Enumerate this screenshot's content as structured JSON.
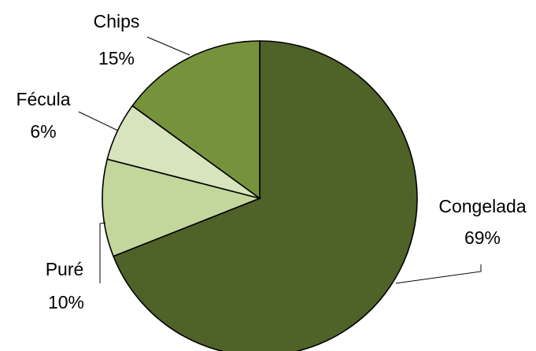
{
  "chart_data": {
    "type": "pie",
    "title": "",
    "slices": [
      {
        "label": "Congelada",
        "value": 69,
        "percent_label": "69%",
        "color": "#4f6228"
      },
      {
        "label": "Puré",
        "value": 10,
        "percent_label": "10%",
        "color": "#c3d69b"
      },
      {
        "label": "Fécula",
        "value": 6,
        "percent_label": "6%",
        "color": "#d7e4bd"
      },
      {
        "label": "Chips",
        "value": 15,
        "percent_label": "15%",
        "color": "#76923c"
      }
    ],
    "start": "12 o'clock",
    "direction": "clockwise",
    "legend": "none",
    "data_labels": "category name and percentage, outside with leader lines"
  }
}
